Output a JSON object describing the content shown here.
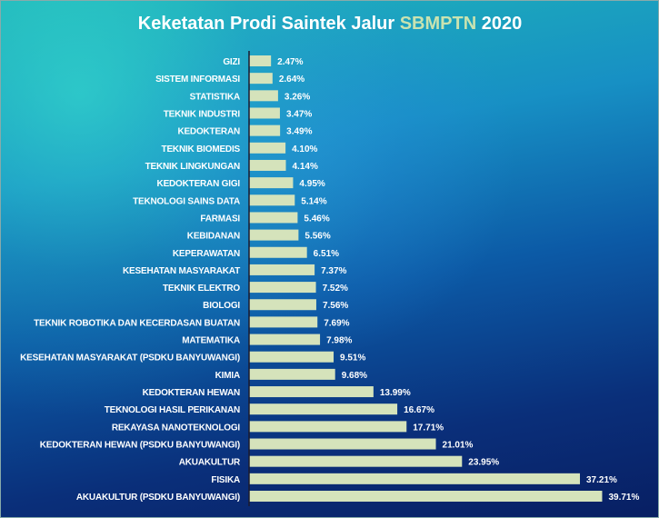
{
  "chart_data": {
    "type": "bar",
    "orientation": "horizontal",
    "title": "Keketatan Prodi Saintek Jalur SBMPTN 2020",
    "title_parts": [
      "Keketatan Prodi Saintek Jalur ",
      "SBMPTN",
      " 2020"
    ],
    "categories": [
      "GIZI",
      "SISTEM INFORMASI",
      "STATISTIKA",
      "TEKNIK INDUSTRI",
      "KEDOKTERAN",
      "TEKNIK BIOMEDIS",
      "TEKNIK LINGKUNGAN",
      "KEDOKTERAN GIGI",
      "TEKNOLOGI SAINS DATA",
      "FARMASI",
      "KEBIDANAN",
      "KEPERAWATAN",
      "KESEHATAN MASYARAKAT",
      "TEKNIK ELEKTRO",
      "BIOLOGI",
      "TEKNIK ROBOTIKA DAN KECERDASAN BUATAN",
      "MATEMATIKA",
      "KESEHATAN MASYARAKAT (PSDKU BANYUWANGI)",
      "KIMIA",
      "KEDOKTERAN HEWAN",
      "TEKNOLOGI HASIL PERIKANAN",
      "REKAYASA NANOTEKNOLOGI",
      "KEDOKTERAN HEWAN (PSDKU BANYUWANGI)",
      "AKUAKULTUR",
      "FISIKA",
      "AKUAKULTUR (PSDKU BANYUWANGI)"
    ],
    "values": [
      2.47,
      2.64,
      3.26,
      3.47,
      3.49,
      4.1,
      4.14,
      4.95,
      5.14,
      5.46,
      5.56,
      6.51,
      7.37,
      7.52,
      7.56,
      7.69,
      7.98,
      9.51,
      9.68,
      13.99,
      16.67,
      17.71,
      21.01,
      23.95,
      37.21,
      39.71
    ],
    "data_labels": [
      "2.47%",
      "2.64%",
      "3.26%",
      "3.47%",
      "3.49%",
      "4.10%",
      "4.14%",
      "4.95%",
      "5.14%",
      "5.46%",
      "5.56%",
      "6.51%",
      "7.37%",
      "7.52%",
      "7.56%",
      "7.69%",
      "7.98%",
      "9.51%",
      "9.68%",
      "13.99%",
      "16.67%",
      "17.71%",
      "21.01%",
      "23.95%",
      "37.21%",
      "39.71%"
    ],
    "xlim": [
      0,
      46
    ],
    "grid": false,
    "legend": "none",
    "colors": {
      "bar": "#d5e3bb",
      "title_highlight": "#c9e3b0",
      "axis": "#1a1a2e"
    }
  }
}
